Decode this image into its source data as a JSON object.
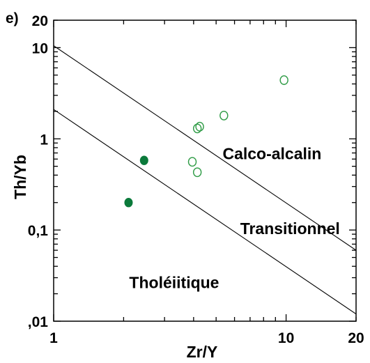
{
  "chart_data": {
    "type": "scatter",
    "panel_label": "e)",
    "title": "",
    "xlabel": "Zr/Y",
    "ylabel": "Th/Yb",
    "xscale": "log",
    "yscale": "log",
    "xlim": [
      1,
      20
    ],
    "ylim": [
      0.01,
      20
    ],
    "x_ticks": [
      {
        "value": 1,
        "label": "1"
      },
      {
        "value": 10,
        "label": "10"
      },
      {
        "value": 20,
        "label": "20"
      }
    ],
    "y_ticks": [
      {
        "value": 0.01,
        "label": ",01"
      },
      {
        "value": 0.1,
        "label": "0,1"
      },
      {
        "value": 1,
        "label": "1"
      },
      {
        "value": 10,
        "label": "10"
      },
      {
        "value": 20,
        "label": "20"
      }
    ],
    "grid": false,
    "reference_lines": [
      {
        "x": [
          1,
          20
        ],
        "y": [
          10.5,
          0.06
        ]
      },
      {
        "x": [
          1,
          20
        ],
        "y": [
          2.1,
          0.012
        ]
      }
    ],
    "region_labels": [
      {
        "text": "Calco-alcalin",
        "x": 8.7,
        "y": 0.6
      },
      {
        "text": "Transitionnel",
        "x": 10.4,
        "y": 0.09
      },
      {
        "text": "Tholéiitique",
        "x": 3.3,
        "y": 0.023
      }
    ],
    "series": [
      {
        "marker": "filled-circle",
        "color": "#0b7a3b",
        "points": [
          [
            2.45,
            0.58
          ],
          [
            2.1,
            0.2
          ]
        ]
      },
      {
        "marker": "open-circle",
        "color": "#2e9b45",
        "points": [
          [
            3.95,
            0.56
          ],
          [
            4.15,
            0.43
          ],
          [
            4.15,
            1.3
          ],
          [
            4.25,
            1.36
          ],
          [
            5.4,
            1.8
          ],
          [
            9.8,
            4.4
          ]
        ]
      }
    ]
  }
}
